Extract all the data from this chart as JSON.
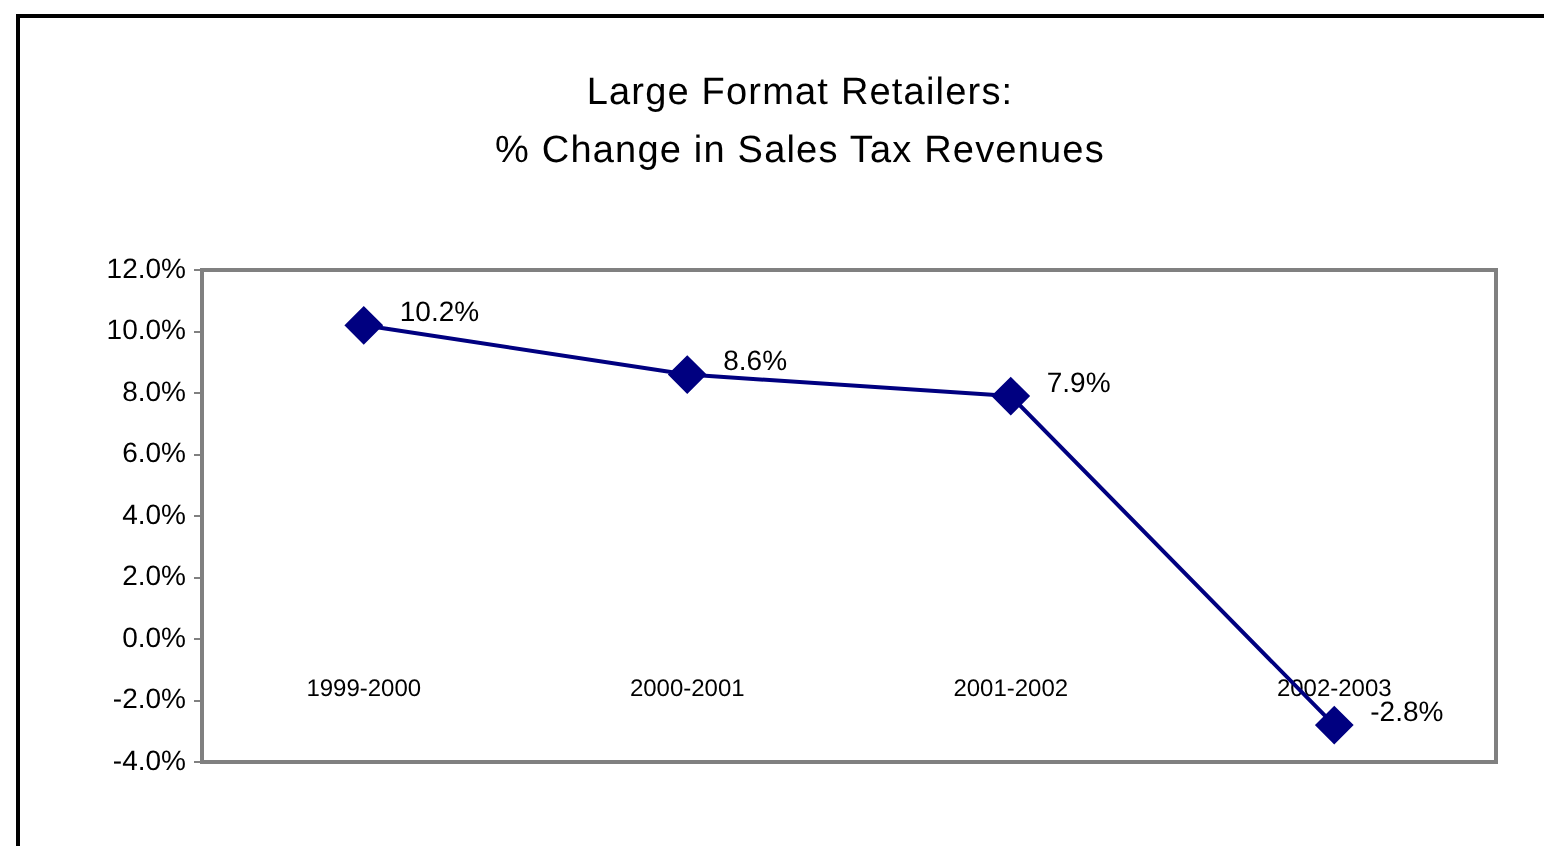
{
  "chart_data": {
    "type": "line",
    "title": "Large Format Retailers:\n% Change in Sales Tax Revenues",
    "categories": [
      "1999-2000",
      "2000-2001",
      "2001-2002",
      "2002-2003"
    ],
    "series": [
      {
        "color": "#000080",
        "values": [
          10.2,
          8.6,
          7.9,
          -2.8
        ],
        "value_labels": [
          "10.2%",
          "8.6%",
          "7.9%",
          "-2.8%"
        ]
      }
    ],
    "ylim": [
      -4,
      12
    ],
    "yticks": [
      {
        "value": 12,
        "label": "12.0%"
      },
      {
        "value": 10,
        "label": "10.0%"
      },
      {
        "value": 8,
        "label": "8.0%"
      },
      {
        "value": 6,
        "label": "6.0%"
      },
      {
        "value": 4,
        "label": "4.0%"
      },
      {
        "value": 2,
        "label": "2.0%"
      },
      {
        "value": 0,
        "label": "0.0%"
      },
      {
        "value": -2,
        "label": "-2.0%"
      },
      {
        "value": -4,
        "label": "-4.0%"
      }
    ],
    "marker": "diamond",
    "line_style": "solid"
  }
}
